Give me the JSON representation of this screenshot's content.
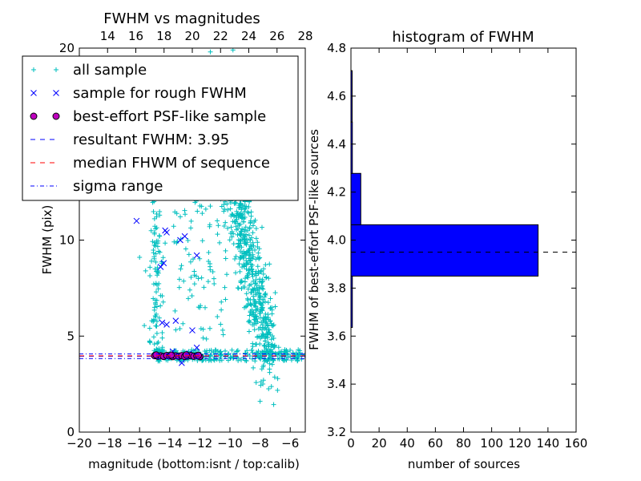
{
  "chart_data": [
    {
      "type": "scatter",
      "title": "FWHM vs magnitudes",
      "xlabel": "magnitude (bottom:isnt / top:calib)",
      "ylabel": "FWHM (pix)",
      "xlim": [
        -20,
        -5
      ],
      "ylim": [
        0,
        20
      ],
      "xticks": [
        -20,
        -18,
        -16,
        -14,
        -12,
        -10,
        -8,
        -6
      ],
      "yticks": [
        0,
        5,
        10
      ],
      "top_xlim": [
        12,
        28
      ],
      "top_xticks": [
        14,
        16,
        18,
        20,
        22,
        24,
        26,
        28
      ],
      "grid": false,
      "legend_position": "upper-left",
      "colors": {
        "all": "#00bfbf",
        "rough": "#0000ff",
        "best_fill": "#bf00bf",
        "resultant": "#0000ff",
        "median": "#ff0000",
        "sigma": "#0000ff"
      },
      "legend": [
        {
          "label": "all sample",
          "marker": "plus"
        },
        {
          "label": "sample for rough FWHM",
          "marker": "x"
        },
        {
          "label": "best-effort PSF-like sample",
          "marker": "circle"
        },
        {
          "label": "resultant FWHM: 3.95",
          "marker": "dashed-blue"
        },
        {
          "label": "median FHWM of sequence",
          "marker": "dashed-red"
        },
        {
          "label": "sigma range",
          "marker": "dashdot-blue"
        }
      ],
      "series": [
        {
          "name": "sample for rough FWHM",
          "points": [
            [
              -16.2,
              11.0
            ],
            [
              -14.3,
              10.5
            ],
            [
              -14.2,
              10.4
            ],
            [
              -14.6,
              8.6
            ],
            [
              -14.4,
              8.8
            ],
            [
              -14.5,
              5.7
            ],
            [
              -14.2,
              5.6
            ],
            [
              -13.6,
              5.8
            ],
            [
              -12.5,
              5.3
            ],
            [
              -12.2,
              9.2
            ],
            [
              -13.0,
              10.2
            ],
            [
              -13.3,
              10.0
            ],
            [
              -12.2,
              4.4
            ],
            [
              -13.2,
              3.6
            ],
            [
              -13.8,
              4.2
            ],
            [
              -12.7,
              4.1
            ]
          ]
        },
        {
          "name": "best-effort PSF-like sample",
          "points": [
            [
              -15.0,
              3.98
            ],
            [
              -14.8,
              3.95
            ],
            [
              -14.6,
              3.97
            ],
            [
              -14.4,
              3.94
            ],
            [
              -14.2,
              3.99
            ],
            [
              -14.0,
              3.96
            ],
            [
              -13.8,
              3.93
            ],
            [
              -13.6,
              3.97
            ],
            [
              -13.4,
              3.95
            ],
            [
              -13.2,
              3.98
            ],
            [
              -13.0,
              3.94
            ],
            [
              -12.8,
              3.96
            ],
            [
              -12.6,
              3.99
            ],
            [
              -12.4,
              3.95
            ],
            [
              -12.2,
              3.97
            ],
            [
              -12.0,
              3.93
            ],
            [
              -14.9,
              4.02
            ],
            [
              -13.9,
              4.01
            ],
            [
              -12.9,
              4.02
            ],
            [
              -12.1,
              4.0
            ]
          ]
        }
      ],
      "hlines": [
        {
          "name": "resultant FWHM: 3.95",
          "y": 3.95
        },
        {
          "name": "median FHWM of sequence",
          "y": 3.97
        },
        {
          "name": "sigma range",
          "y": 3.83
        },
        {
          "name": "sigma range",
          "y": 4.07
        }
      ]
    },
    {
      "type": "bar",
      "orientation": "horizontal",
      "title": "histogram of FWHM",
      "xlabel": "number of sources",
      "ylabel": "FWHM of best-effort PSF-like sources",
      "xlim": [
        0,
        160
      ],
      "ylim": [
        3.2,
        4.8
      ],
      "xticks": [
        0,
        20,
        40,
        60,
        80,
        100,
        120,
        140,
        160
      ],
      "yticks": [
        3.2,
        3.4,
        3.6,
        3.8,
        4.0,
        4.2,
        4.4,
        4.6,
        4.8
      ],
      "bar_color": "#0000ff",
      "bins": [
        {
          "lo": 3.636,
          "hi": 3.85,
          "count": 1
        },
        {
          "lo": 3.85,
          "hi": 4.064,
          "count": 133
        },
        {
          "lo": 4.064,
          "hi": 4.278,
          "count": 7
        },
        {
          "lo": 4.278,
          "hi": 4.492,
          "count": 1
        },
        {
          "lo": 4.492,
          "hi": 4.706,
          "count": 0
        }
      ],
      "hline": 3.95
    }
  ]
}
